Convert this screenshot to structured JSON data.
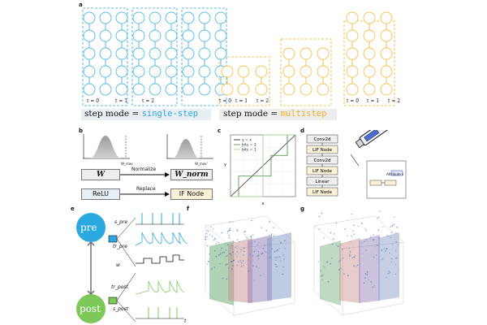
{
  "panels": {
    "a": "a",
    "b": "b",
    "c": "c",
    "d": "d",
    "e": "e",
    "f": "f",
    "g": "g"
  },
  "panel_a": {
    "time_labels": [
      "t = 0",
      "t = 1",
      "t = 2"
    ],
    "single_step_label": "step mode = ",
    "single_step_value": "single-step",
    "multi_step_label": "step mode = ",
    "multi_step_value": "multistep",
    "colors": {
      "single": "#29a9e0",
      "multi": "#f5b120"
    }
  },
  "panel_b": {
    "w_label": "W",
    "w_norm_label": "W_norm",
    "normalize_label": "Normalize",
    "replace_label": "Replace",
    "relu_label": "ReLU",
    "if_label": "IF Node",
    "w_max_label": "W_max",
    "wn_max_label": "W_max'"
  },
  "panel_c": {
    "legend": [
      "y = x",
      "bits = 2",
      "bits = 1"
    ],
    "xlabel": "x",
    "ylabel": "y"
  },
  "panel_d": {
    "layers": [
      "Conv2d",
      "LIF Node",
      "Conv2d",
      "LIF Node",
      "Linear",
      "LIF Node"
    ],
    "callout": "Attribute x"
  },
  "panel_e": {
    "pre_label": "pre",
    "post_label": "post",
    "traces": [
      "s_pre",
      "tr_pre",
      "w",
      "tr_post",
      "s_post"
    ],
    "t_label": "t"
  },
  "chart_data": [
    {
      "type": "line",
      "title": "",
      "xlabel": "x",
      "ylabel": "y",
      "series": [
        {
          "name": "y = x",
          "x": [
            0,
            1
          ],
          "y": [
            0,
            1
          ]
        },
        {
          "name": "bits = 2",
          "x": [
            0,
            0.125,
            0.125,
            0.375,
            0.375,
            0.625,
            0.625,
            0.875,
            0.875,
            1
          ],
          "y": [
            0,
            0,
            0.333,
            0.333,
            0.333,
            0.333,
            0.667,
            0.667,
            1,
            1
          ]
        },
        {
          "name": "bits = 1",
          "x": [
            0,
            0.5,
            0.5,
            1
          ],
          "y": [
            0,
            0,
            1,
            1
          ]
        }
      ],
      "xlim": [
        0,
        1
      ],
      "ylim": [
        0,
        1
      ]
    }
  ]
}
